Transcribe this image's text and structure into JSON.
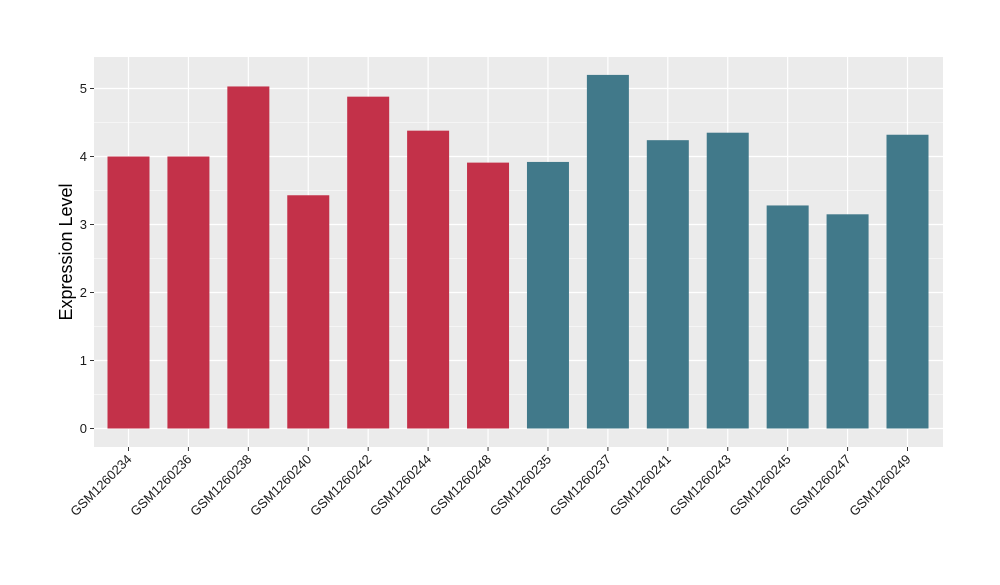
{
  "chart_data": {
    "type": "bar",
    "title": "",
    "xlabel": "",
    "ylabel": "Expression Level",
    "ylim": [
      0,
      5.45
    ],
    "yticks": [
      "0",
      "1",
      "2",
      "3",
      "4",
      "5"
    ],
    "grid": true,
    "legend": "none",
    "categories": [
      "GSM1260234",
      "GSM1260236",
      "GSM1260238",
      "GSM1260240",
      "GSM1260242",
      "GSM1260244",
      "GSM1260248",
      "GSM1260235",
      "GSM1260237",
      "GSM1260241",
      "GSM1260243",
      "GSM1260245",
      "GSM1260247",
      "GSM1260249"
    ],
    "values": [
      4.0,
      4.0,
      5.03,
      3.43,
      4.88,
      4.38,
      3.91,
      3.92,
      5.2,
      4.24,
      4.35,
      3.28,
      3.15,
      4.32
    ],
    "bar_colors": [
      "#c33149",
      "#c33149",
      "#c33149",
      "#c33149",
      "#c33149",
      "#c33149",
      "#c33149",
      "#41798a",
      "#41798a",
      "#41798a",
      "#41798a",
      "#41798a",
      "#41798a",
      "#41798a"
    ],
    "panel_background": "#ebebeb",
    "grid_color": "#ffffff"
  }
}
